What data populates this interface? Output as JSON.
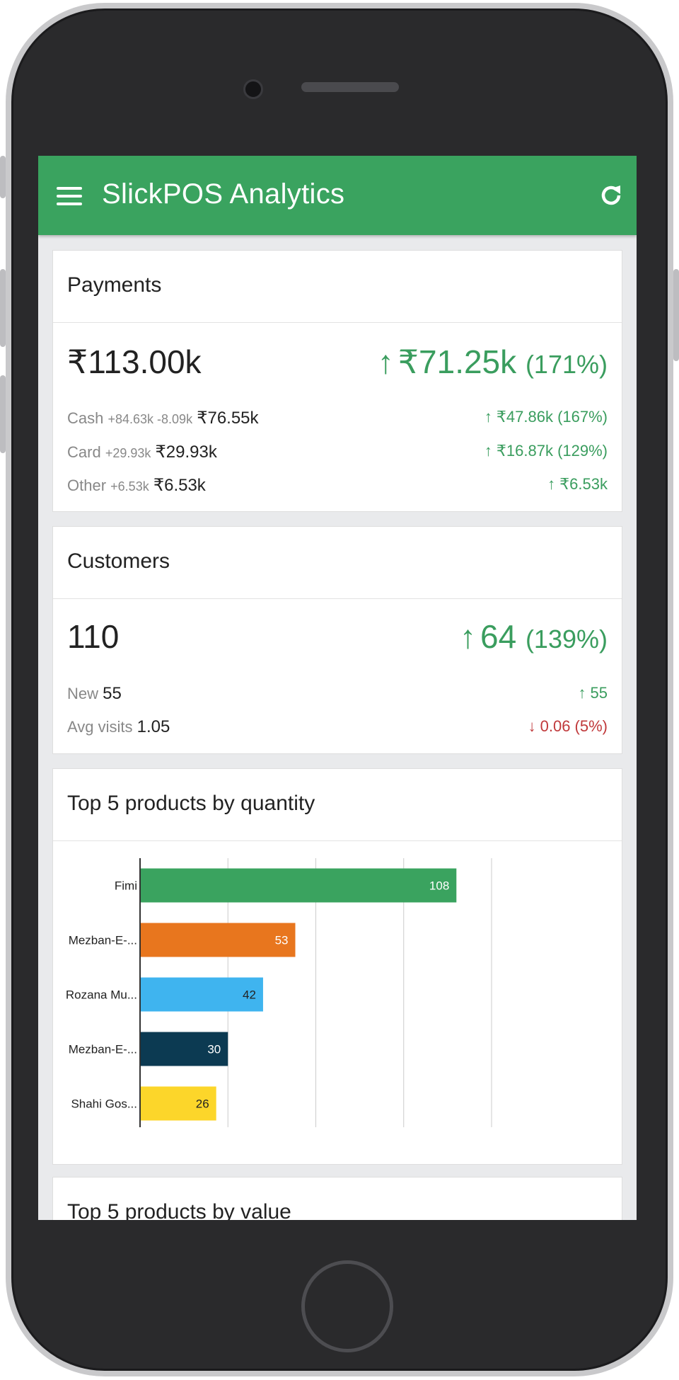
{
  "app": {
    "title": "SlickPOS Analytics"
  },
  "payments": {
    "title": "Payments",
    "total": "₹113.00k",
    "change": "₹71.25k",
    "change_pct": "(171%)",
    "rows": [
      {
        "label": "Cash",
        "detail": "+84.63k -8.09k",
        "value": "₹76.55k",
        "change": "₹47.86k (167%)"
      },
      {
        "label": "Card",
        "detail": "+29.93k",
        "value": "₹29.93k",
        "change": "₹16.87k (129%)"
      },
      {
        "label": "Other",
        "detail": "+6.53k",
        "value": "₹6.53k",
        "change": "₹6.53k"
      }
    ]
  },
  "customers": {
    "title": "Customers",
    "total": "110",
    "change": "64",
    "change_pct": "(139%)",
    "rows": [
      {
        "label": "New",
        "value": "55",
        "change": "55",
        "direction": "up"
      },
      {
        "label": "Avg visits",
        "value": "1.05",
        "change": "0.06 (5%)",
        "direction": "down"
      }
    ]
  },
  "top_quantity": {
    "title": "Top 5 products by quantity"
  },
  "top_value": {
    "title": "Top 5 products by value"
  },
  "icons": {
    "menu": "hamburger-menu-icon",
    "refresh": "refresh-icon",
    "up": "arrow-up-icon",
    "down": "arrow-down-icon"
  },
  "colors": {
    "header": "#3aa35f",
    "positive": "#3a9d5e",
    "negative": "#c0393b"
  },
  "chart_data": {
    "type": "bar",
    "orientation": "horizontal",
    "categories": [
      "Fimi",
      "Mezban-E-...",
      "Rozana Mu...",
      "Mezban-E-...",
      "Shahi Gos..."
    ],
    "values": [
      108,
      53,
      42,
      30,
      26
    ],
    "colors": [
      "#3aa35f",
      "#e8761e",
      "#3fb4ef",
      "#0c3a52",
      "#fcd62a"
    ],
    "xlim": [
      0,
      120
    ],
    "grid": true
  }
}
